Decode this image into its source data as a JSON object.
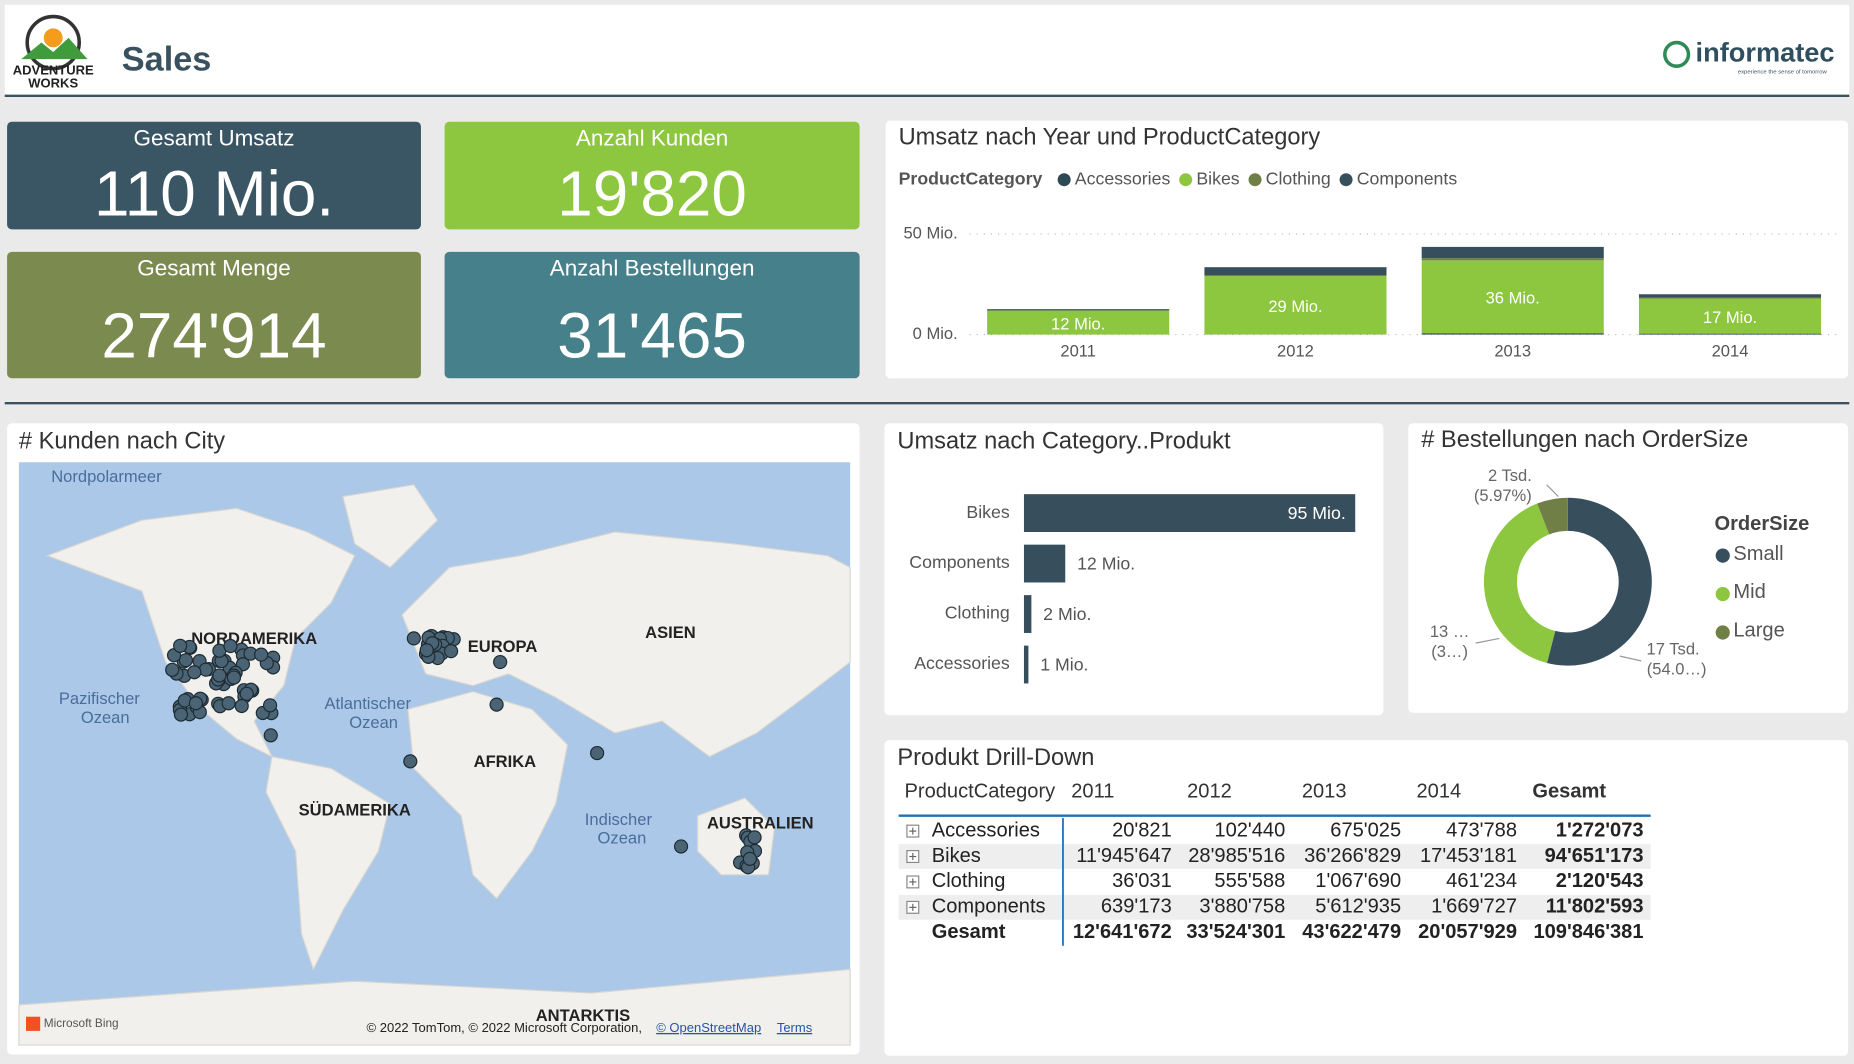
{
  "header": {
    "title": "Sales",
    "logo_left": [
      "ADVENTURE",
      "WORKS"
    ],
    "logo_right": "informatec",
    "logo_right_tagline": "experience the sense of tomorrow"
  },
  "kpis": [
    {
      "label": "Gesamt Umsatz",
      "value": "110 Mio."
    },
    {
      "label": "Anzahl Kunden",
      "value": "19'820"
    },
    {
      "label": "Gesamt Menge",
      "value": "274'914"
    },
    {
      "label": "Anzahl Bestellungen",
      "value": "31'465"
    }
  ],
  "chart_data": [
    {
      "type": "stacked_bar",
      "title": "Umsatz nach Year und ProductCategory",
      "legend_title": "ProductCategory",
      "categories": [
        "2011",
        "2012",
        "2013",
        "2014"
      ],
      "series": [
        {
          "name": "Accessories",
          "color": "#2f4856",
          "values": [
            0.020821,
            0.10244,
            0.675025,
            0.473788
          ]
        },
        {
          "name": "Bikes",
          "color": "#8dc63f",
          "values": [
            11.945647,
            28.985516,
            36.266829,
            17.453181
          ],
          "value_labels": [
            "12 Mio.",
            "29 Mio.",
            "36 Mio.",
            "17 Mio."
          ]
        },
        {
          "name": "Clothing",
          "color": "#6f7f45",
          "values": [
            0.036031,
            0.555588,
            1.06769,
            0.461234
          ]
        },
        {
          "name": "Components",
          "color": "#374f5c",
          "values": [
            0.639173,
            3.880758,
            5.612935,
            1.669727
          ]
        }
      ],
      "ylim": [
        0,
        50
      ],
      "yticks": [
        {
          "value": 0,
          "label": "0 Mio."
        },
        {
          "value": 50,
          "label": "50 Mio."
        }
      ],
      "grid": true
    },
    {
      "type": "hbar",
      "title": "Umsatz nach Category..Produkt",
      "categories": [
        "Bikes",
        "Components",
        "Clothing",
        "Accessories"
      ],
      "values": [
        94.651173,
        11.802593,
        2.120543,
        1.272073
      ],
      "value_labels": [
        "95 Mio.",
        "12 Mio.",
        "2 Mio.",
        "1 Mio."
      ],
      "color": "#374f5c",
      "xlim": [
        0,
        100
      ]
    },
    {
      "type": "donut",
      "title": "# Bestellungen nach OrderSize",
      "legend_title": "OrderSize",
      "categories": [
        "Small",
        "Mid",
        "Large"
      ],
      "values": [
        16990,
        12597,
        1878
      ],
      "value_labels": [
        [
          "17 Tsd.",
          "(54.0…)"
        ],
        [
          "13 …",
          "(3…)"
        ],
        [
          "2 Tsd.",
          "(5.97%)"
        ]
      ],
      "colors": [
        "#374f5c",
        "#8dc63f",
        "#6f7f45"
      ]
    }
  ],
  "map": {
    "title": "# Kunden nach City",
    "labels": [
      "Nordpolarmeer",
      "NORDAMERIKA",
      "EUROPA",
      "ASIEN",
      "Pazifischer",
      "Ozean",
      "Atlantischer",
      "Ozean",
      "AFRIKA",
      "SÜDAMERIKA",
      "Indischer",
      "Ozean",
      "AUSTRALIEN",
      "ANTARKTIS"
    ],
    "provider": "Microsoft Bing",
    "attribution": "© 2022 TomTom, © 2022 Microsoft Corporation,",
    "osm": "© OpenStreetMap",
    "terms": "Terms"
  },
  "table": {
    "title": "Produkt Drill-Down",
    "columns": [
      "ProductCategory",
      "2011",
      "2012",
      "2013",
      "2014",
      "Gesamt"
    ],
    "rows": [
      [
        "Accessories",
        "20'821",
        "102'440",
        "675'025",
        "473'788",
        "1'272'073"
      ],
      [
        "Bikes",
        "11'945'647",
        "28'985'516",
        "36'266'829",
        "17'453'181",
        "94'651'173"
      ],
      [
        "Clothing",
        "36'031",
        "555'588",
        "1'067'690",
        "461'234",
        "2'120'543"
      ],
      [
        "Components",
        "639'173",
        "3'880'758",
        "5'612'935",
        "1'669'727",
        "11'802'593"
      ]
    ],
    "total": [
      "Gesamt",
      "12'641'672",
      "33'524'301",
      "43'622'479",
      "20'057'929",
      "109'846'381"
    ]
  }
}
